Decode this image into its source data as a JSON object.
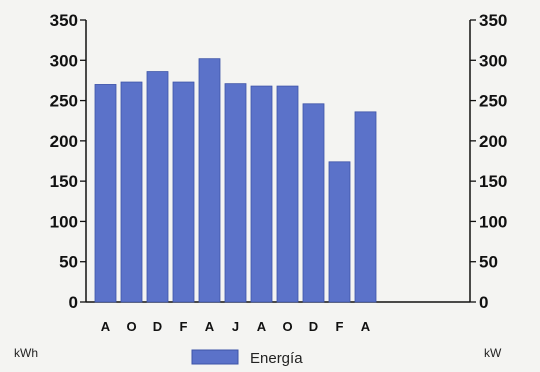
{
  "chart_data": {
    "type": "bar",
    "categories": [
      "A",
      "O",
      "D",
      "F",
      "A",
      "J",
      "A",
      "O",
      "D",
      "F",
      "A"
    ],
    "series": [
      {
        "name": "Energía",
        "values": [
          270,
          273,
          286,
          273,
          302,
          271,
          268,
          268,
          246,
          174,
          236
        ]
      }
    ],
    "ylim": [
      0,
      350
    ],
    "yticks": [
      0,
      50,
      100,
      150,
      200,
      250,
      300,
      350
    ],
    "y2lim": [
      0,
      350
    ],
    "y2ticks": [
      0,
      50,
      100,
      150,
      200,
      250,
      300,
      350
    ],
    "ylabel": "kWh",
    "y2label": "kW",
    "legend_position": "bottom",
    "grid": false,
    "colors": {
      "bar": "#5b72c9",
      "bar_edge": "#3e54a8",
      "axis": "#111111"
    }
  }
}
